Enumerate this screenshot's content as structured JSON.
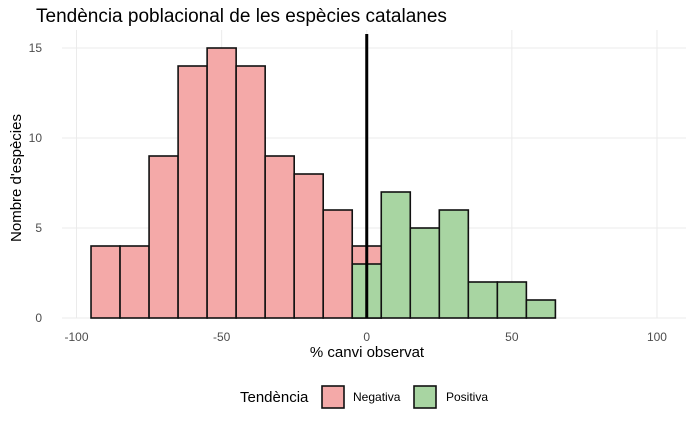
{
  "chart_data": {
    "type": "bar",
    "title": "Tendència poblacional de les espècies catalanes",
    "xlabel": "% canvi observat",
    "ylabel": "Nombre d'espècies",
    "xlim": [
      -105,
      110
    ],
    "ylim": [
      0,
      16
    ],
    "xticks": [
      -100,
      -50,
      0,
      50,
      100
    ],
    "yticks": [
      0,
      5,
      10,
      15
    ],
    "bin_width": 10,
    "reference_line_x": 0,
    "grid": true,
    "legend_title": "Tendència",
    "legend_position": "bottom",
    "series": [
      {
        "name": "Negativa",
        "color": "#f4a9a8",
        "bins": [
          {
            "x0": -95,
            "x1": -85,
            "count": 4
          },
          {
            "x0": -85,
            "x1": -75,
            "count": 4
          },
          {
            "x0": -75,
            "x1": -65,
            "count": 9
          },
          {
            "x0": -65,
            "x1": -55,
            "count": 14
          },
          {
            "x0": -55,
            "x1": -45,
            "count": 15
          },
          {
            "x0": -45,
            "x1": -35,
            "count": 14
          },
          {
            "x0": -35,
            "x1": -25,
            "count": 9
          },
          {
            "x0": -25,
            "x1": -15,
            "count": 8
          },
          {
            "x0": -15,
            "x1": -5,
            "count": 6
          },
          {
            "x0": -5,
            "x1": 5,
            "count": 4
          }
        ]
      },
      {
        "name": "Positiva",
        "color": "#a8d5a2",
        "bins": [
          {
            "x0": -5,
            "x1": 5,
            "count": 3
          },
          {
            "x0": 5,
            "x1": 15,
            "count": 7
          },
          {
            "x0": 15,
            "x1": 25,
            "count": 5
          },
          {
            "x0": 25,
            "x1": 35,
            "count": 6
          },
          {
            "x0": 35,
            "x1": 45,
            "count": 2
          },
          {
            "x0": 45,
            "x1": 55,
            "count": 2
          },
          {
            "x0": 55,
            "x1": 65,
            "count": 1
          }
        ]
      }
    ]
  }
}
